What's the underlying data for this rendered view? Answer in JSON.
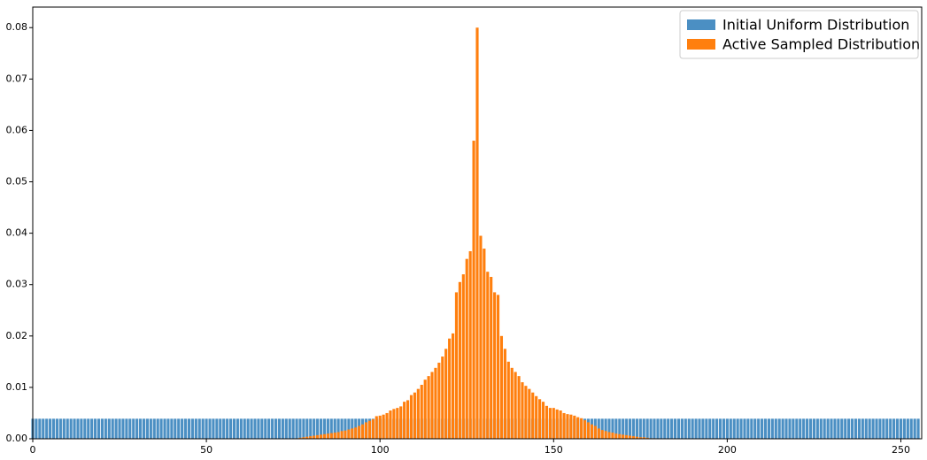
{
  "chart_data": {
    "type": "bar",
    "x": [
      0,
      1,
      2,
      3,
      4,
      5,
      6,
      7,
      8,
      9,
      10,
      11,
      12,
      13,
      14,
      15,
      16,
      17,
      18,
      19,
      20,
      21,
      22,
      23,
      24,
      25,
      26,
      27,
      28,
      29,
      30,
      31,
      32,
      33,
      34,
      35,
      36,
      37,
      38,
      39,
      40,
      41,
      42,
      43,
      44,
      45,
      46,
      47,
      48,
      49,
      50,
      51,
      52,
      53,
      54,
      55,
      56,
      57,
      58,
      59,
      60,
      61,
      62,
      63,
      64,
      65,
      66,
      67,
      68,
      69,
      70,
      71,
      72,
      73,
      74,
      75,
      76,
      77,
      78,
      79,
      80,
      81,
      82,
      83,
      84,
      85,
      86,
      87,
      88,
      89,
      90,
      91,
      92,
      93,
      94,
      95,
      96,
      97,
      98,
      99,
      100,
      101,
      102,
      103,
      104,
      105,
      106,
      107,
      108,
      109,
      110,
      111,
      112,
      113,
      114,
      115,
      116,
      117,
      118,
      119,
      120,
      121,
      122,
      123,
      124,
      125,
      126,
      127,
      128,
      129,
      130,
      131,
      132,
      133,
      134,
      135,
      136,
      137,
      138,
      139,
      140,
      141,
      142,
      143,
      144,
      145,
      146,
      147,
      148,
      149,
      150,
      151,
      152,
      153,
      154,
      155,
      156,
      157,
      158,
      159,
      160,
      161,
      162,
      163,
      164,
      165,
      166,
      167,
      168,
      169,
      170,
      171,
      172,
      173,
      174,
      175,
      176,
      177,
      178,
      179,
      180,
      181,
      182,
      183,
      184,
      185,
      186,
      187,
      188,
      189,
      190,
      191,
      192,
      193,
      194,
      195,
      196,
      197,
      198,
      199,
      200,
      201,
      202,
      203,
      204,
      205,
      206,
      207,
      208,
      209,
      210,
      211,
      212,
      213,
      214,
      215,
      216,
      217,
      218,
      219,
      220,
      221,
      222,
      223,
      224,
      225,
      226,
      227,
      228,
      229,
      230,
      231,
      232,
      233,
      234,
      235,
      236,
      237,
      238,
      239,
      240,
      241,
      242,
      243,
      244,
      245,
      246,
      247,
      248,
      249,
      250,
      251,
      252,
      253,
      254,
      255
    ],
    "series": [
      {
        "name": "Initial Uniform Distribution",
        "color": "#4b8fc3",
        "values": [
          0.0039,
          0.0039,
          0.0039,
          0.0039,
          0.0039,
          0.0039,
          0.0039,
          0.0039,
          0.0039,
          0.0039,
          0.0039,
          0.0039,
          0.0039,
          0.0039,
          0.0039,
          0.0039,
          0.0039,
          0.0039,
          0.0039,
          0.0039,
          0.0039,
          0.0039,
          0.0039,
          0.0039,
          0.0039,
          0.0039,
          0.0039,
          0.0039,
          0.0039,
          0.0039,
          0.0039,
          0.0039,
          0.0039,
          0.0039,
          0.0039,
          0.0039,
          0.0039,
          0.0039,
          0.0039,
          0.0039,
          0.0039,
          0.0039,
          0.0039,
          0.0039,
          0.0039,
          0.0039,
          0.0039,
          0.0039,
          0.0039,
          0.0039,
          0.0039,
          0.0039,
          0.0039,
          0.0039,
          0.0039,
          0.0039,
          0.0039,
          0.0039,
          0.0039,
          0.0039,
          0.0039,
          0.0039,
          0.0039,
          0.0039,
          0.0039,
          0.0039,
          0.0039,
          0.0039,
          0.0039,
          0.0039,
          0.0039,
          0.0039,
          0.0039,
          0.0039,
          0.0039,
          0.0039,
          0.0039,
          0.0039,
          0.0039,
          0.0039,
          0.0039,
          0.0039,
          0.0039,
          0.0039,
          0.0039,
          0.0039,
          0.0039,
          0.0039,
          0.0039,
          0.0039,
          0.0039,
          0.0039,
          0.0039,
          0.0039,
          0.0039,
          0.0039,
          0.0039,
          0.0039,
          0.0039,
          0.0039,
          0.0039,
          0.0039,
          0.0039,
          0.0039,
          0.0039,
          0.0039,
          0.0039,
          0.0039,
          0.0039,
          0.0039,
          0.0039,
          0.0039,
          0.0039,
          0.0039,
          0.0039,
          0.0039,
          0.0039,
          0.0039,
          0.0039,
          0.0039,
          0.0039,
          0.0039,
          0.0039,
          0.0039,
          0.0039,
          0.0039,
          0.0039,
          0.0039,
          0.0039,
          0.0039,
          0.0039,
          0.0039,
          0.0039,
          0.0039,
          0.0039,
          0.0039,
          0.0039,
          0.0039,
          0.0039,
          0.0039,
          0.0039,
          0.0039,
          0.0039,
          0.0039,
          0.0039,
          0.0039,
          0.0039,
          0.0039,
          0.0039,
          0.0039,
          0.0039,
          0.0039,
          0.0039,
          0.0039,
          0.0039,
          0.0039,
          0.0039,
          0.0039,
          0.0039,
          0.0039,
          0.0039,
          0.0039,
          0.0039,
          0.0039,
          0.0039,
          0.0039,
          0.0039,
          0.0039,
          0.0039,
          0.0039,
          0.0039,
          0.0039,
          0.0039,
          0.0039,
          0.0039,
          0.0039,
          0.0039,
          0.0039,
          0.0039,
          0.0039,
          0.0039,
          0.0039,
          0.0039,
          0.0039,
          0.0039,
          0.0039,
          0.0039,
          0.0039,
          0.0039,
          0.0039,
          0.0039,
          0.0039,
          0.0039,
          0.0039,
          0.0039,
          0.0039,
          0.0039,
          0.0039,
          0.0039,
          0.0039,
          0.0039,
          0.0039,
          0.0039,
          0.0039,
          0.0039,
          0.0039,
          0.0039,
          0.0039,
          0.0039,
          0.0039,
          0.0039,
          0.0039,
          0.0039,
          0.0039,
          0.0039,
          0.0039,
          0.0039,
          0.0039,
          0.0039,
          0.0039,
          0.0039,
          0.0039,
          0.0039,
          0.0039,
          0.0039,
          0.0039,
          0.0039,
          0.0039,
          0.0039,
          0.0039,
          0.0039,
          0.0039,
          0.0039,
          0.0039,
          0.0039,
          0.0039,
          0.0039,
          0.0039,
          0.0039,
          0.0039,
          0.0039,
          0.0039,
          0.0039,
          0.0039,
          0.0039,
          0.0039,
          0.0039,
          0.0039,
          0.0039,
          0.0039,
          0.0039,
          0.0039,
          0.0039,
          0.0039,
          0.0039,
          0.0039
        ]
      },
      {
        "name": "Active Sampled Distribution",
        "color": "#ff7f0e",
        "values": [
          0,
          0,
          0,
          0,
          0,
          0,
          0,
          0,
          0,
          0,
          0,
          0,
          0,
          0,
          0,
          0,
          0,
          0,
          0,
          0,
          0,
          0,
          0,
          0,
          0,
          0,
          0,
          0,
          0,
          0,
          0,
          0,
          0,
          0,
          0,
          0,
          0,
          0,
          0,
          0,
          0,
          0,
          0,
          0,
          0,
          0,
          0,
          0,
          0,
          0,
          0,
          0,
          0,
          0,
          0,
          0,
          0,
          0,
          0,
          0,
          0,
          0,
          0,
          0,
          0,
          0,
          0,
          0,
          0,
          0,
          0,
          0,
          0,
          0,
          0,
          0,
          0.0001,
          0.0002,
          0.0003,
          0.0004,
          0.0005,
          0.0006,
          0.0007,
          0.0008,
          0.0009,
          0.001,
          0.0011,
          0.0012,
          0.0013,
          0.0015,
          0.0016,
          0.0018,
          0.002,
          0.0022,
          0.0025,
          0.0028,
          0.0032,
          0.0035,
          0.0038,
          0.0044,
          0.0045,
          0.0047,
          0.005,
          0.0055,
          0.0058,
          0.006,
          0.0063,
          0.0072,
          0.0075,
          0.0085,
          0.009,
          0.0097,
          0.0105,
          0.0115,
          0.0122,
          0.013,
          0.0138,
          0.0148,
          0.016,
          0.0175,
          0.0195,
          0.0205,
          0.0285,
          0.0305,
          0.032,
          0.035,
          0.0365,
          0.058,
          0.08,
          0.0395,
          0.037,
          0.0325,
          0.0315,
          0.0285,
          0.028,
          0.02,
          0.0175,
          0.015,
          0.0138,
          0.013,
          0.0122,
          0.011,
          0.0103,
          0.0097,
          0.009,
          0.0083,
          0.0077,
          0.0072,
          0.0064,
          0.006,
          0.006,
          0.0057,
          0.0055,
          0.005,
          0.0048,
          0.0047,
          0.0045,
          0.0042,
          0.004,
          0.0036,
          0.0032,
          0.0028,
          0.0025,
          0.002,
          0.0017,
          0.0015,
          0.0013,
          0.0012,
          0.001,
          0.0009,
          0.0008,
          0.0007,
          0.0006,
          0.0005,
          0.0004,
          0.0003,
          0.0003,
          0.0002,
          0.0001,
          0.0001,
          0,
          0,
          0,
          0,
          0,
          0,
          0,
          0,
          0,
          0,
          0,
          0,
          0,
          0,
          0,
          0,
          0,
          0,
          0,
          0,
          0,
          0,
          0,
          0,
          0,
          0,
          0,
          0,
          0,
          0,
          0,
          0,
          0,
          0,
          0,
          0,
          0,
          0,
          0,
          0,
          0,
          0,
          0,
          0,
          0,
          0,
          0,
          0,
          0,
          0,
          0,
          0,
          0,
          0,
          0,
          0,
          0,
          0,
          0,
          0,
          0,
          0,
          0,
          0,
          0,
          0,
          0,
          0,
          0,
          0,
          0,
          0,
          0,
          0,
          0,
          0
        ]
      }
    ],
    "xlim": [
      0,
      256
    ],
    "xticks": [
      0,
      50,
      100,
      150,
      200,
      250
    ],
    "ylim": [
      0,
      0.084
    ],
    "yticks": [
      {
        "value": 0,
        "label": "0.00"
      },
      0.01,
      0.02,
      0.03,
      0.04,
      0.05,
      0.06,
      0.07,
      0.08
    ],
    "legend": "upper right",
    "grid": false
  }
}
